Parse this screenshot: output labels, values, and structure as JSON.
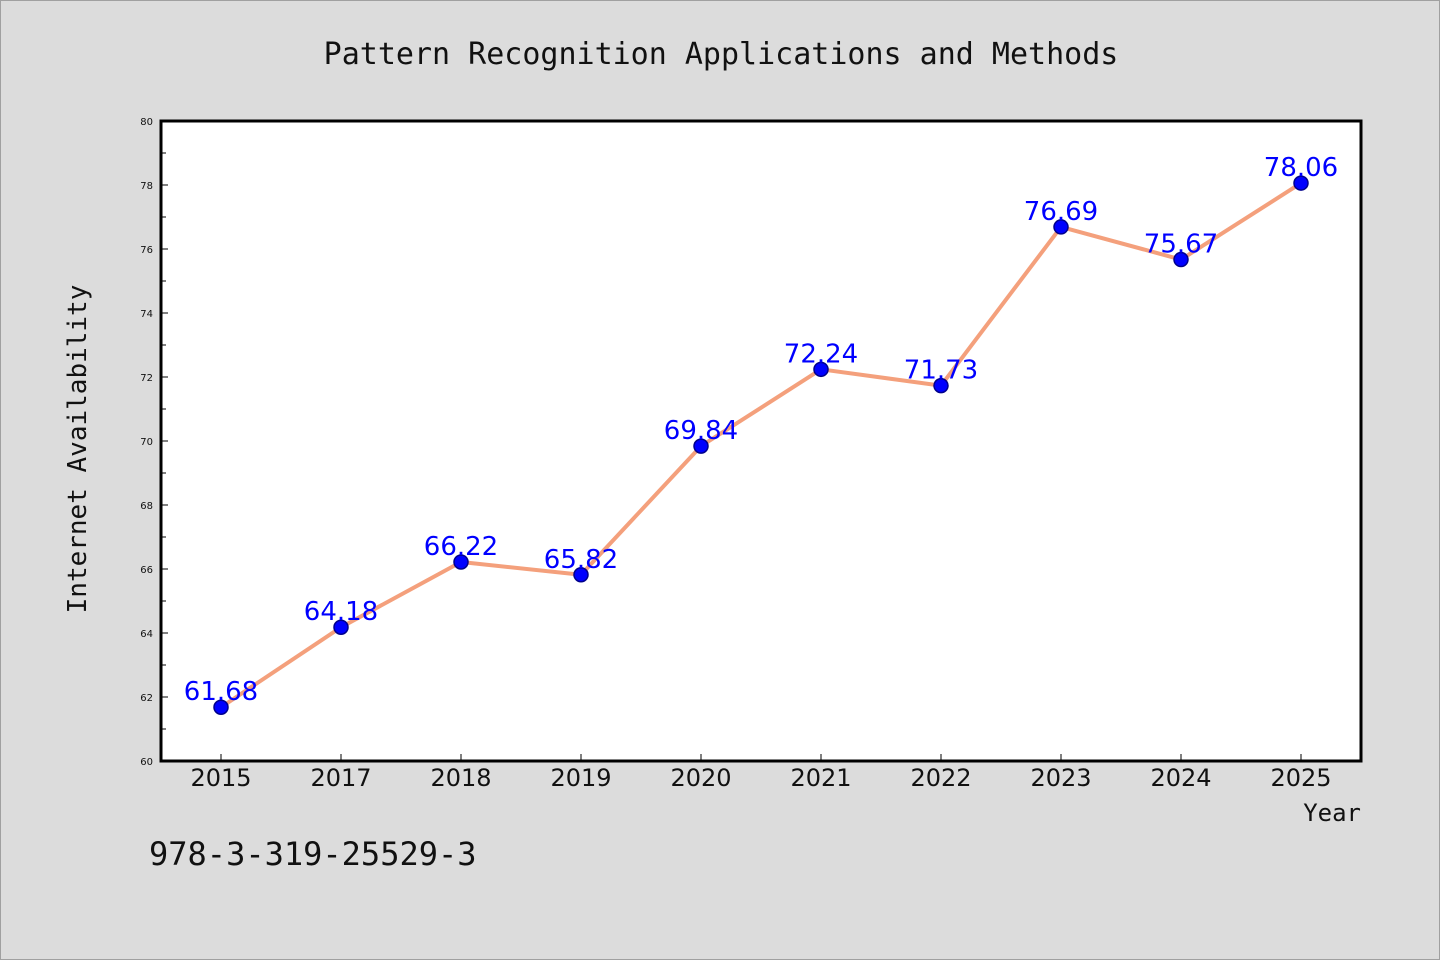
{
  "chart_data": {
    "type": "line",
    "title": "Pattern Recognition Applications and Methods",
    "xlabel": "Year",
    "ylabel": "Internet Availability",
    "categories": [
      "2015",
      "2017",
      "2018",
      "2019",
      "2020",
      "2021",
      "2022",
      "2023",
      "2024",
      "2025"
    ],
    "series": [
      {
        "values": [
          61.68,
          64.18,
          66.22,
          65.82,
          69.84,
          72.24,
          71.73,
          76.69,
          75.67,
          78.06
        ],
        "data_labels": [
          "61.68",
          "64.18",
          "66.22",
          "65.82",
          "69.84",
          "72.24",
          "71.73",
          "76.69",
          "75.67",
          "78.06"
        ]
      }
    ],
    "ylim": [
      60,
      80
    ],
    "yticks": [
      60,
      62,
      64,
      66,
      68,
      70,
      72,
      74,
      76,
      78,
      80
    ],
    "ytick_labels": [
      "60",
      "62",
      "64",
      "66",
      "68",
      "70",
      "72",
      "74",
      "76",
      "78",
      "80"
    ],
    "grid": false,
    "legend": "none",
    "colors": {
      "line": "#f4a07c",
      "marker_fill": "#0000ff",
      "marker_edge": "#00008b",
      "data_label": "#0000ff",
      "plot_background": "#ffffff",
      "figure_background": "#dcdcdc"
    }
  },
  "footer": {
    "isbn": "978-3-319-25529-3"
  }
}
